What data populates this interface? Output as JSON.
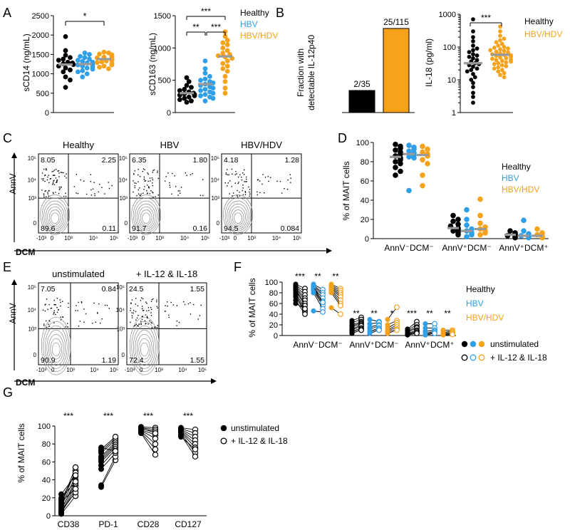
{
  "colors": {
    "healthy": "#000000",
    "hbv": "#2f9fe8",
    "hbvhdv": "#f7a21b",
    "median": "#999999"
  },
  "legend_group": [
    "Healthy",
    "HBV",
    "HBV/HDV"
  ],
  "legend_stim": [
    "unstimulated",
    "+ IL-12 & IL-18"
  ],
  "panel_labels": [
    "A",
    "B",
    "C",
    "D",
    "E",
    "F",
    "G"
  ],
  "chart_data": [
    {
      "id": "A1",
      "type": "scatter",
      "ylabel": "sCD14 (ng/mL)",
      "ylim": [
        0,
        2500
      ],
      "yticks": [
        0,
        500,
        1000,
        1500,
        2000,
        2500
      ],
      "sig": [
        "*"
      ],
      "series": [
        {
          "name": "Healthy",
          "median": 1240,
          "values": [
            1960,
            1600,
            1480,
            1420,
            1380,
            1350,
            1300,
            1280,
            1260,
            1240,
            1200,
            1150,
            1100,
            1050,
            920,
            840,
            650
          ]
        },
        {
          "name": "HBV",
          "median": 1250,
          "values": [
            1540,
            1500,
            1450,
            1420,
            1380,
            1350,
            1320,
            1300,
            1280,
            1250,
            1230,
            1200,
            1180,
            1150,
            1120,
            1080,
            1050,
            1000,
            920
          ]
        },
        {
          "name": "HBV/HDV",
          "median": 1380,
          "values": [
            1560,
            1540,
            1510,
            1490,
            1470,
            1450,
            1430,
            1410,
            1400,
            1390,
            1380,
            1370,
            1350,
            1330,
            1310,
            1290,
            1270,
            1250,
            1230,
            1200,
            1170,
            1130
          ]
        }
      ]
    },
    {
      "id": "A2",
      "type": "scatter",
      "ylabel": "sCD163 (ng/mL)",
      "ylim": [
        0,
        1500
      ],
      "yticks": [
        0,
        500,
        1000,
        1500
      ],
      "sig": [
        "**",
        "***",
        "***"
      ],
      "series": [
        {
          "name": "Healthy",
          "median": 300,
          "values": [
            540,
            480,
            420,
            390,
            360,
            340,
            320,
            300,
            290,
            280,
            270,
            260,
            240,
            220,
            200,
            180,
            160
          ]
        },
        {
          "name": "HBV",
          "median": 440,
          "values": [
            800,
            680,
            610,
            560,
            520,
            500,
            480,
            460,
            440,
            420,
            400,
            380,
            360,
            340,
            320,
            300,
            280,
            260,
            240,
            220,
            180
          ]
        },
        {
          "name": "HBV/HDV",
          "median": 870,
          "values": [
            1250,
            1180,
            1120,
            1080,
            1050,
            1000,
            960,
            920,
            900,
            880,
            860,
            840,
            800,
            760,
            720,
            680,
            640,
            560,
            480,
            380,
            300
          ]
        }
      ]
    },
    {
      "id": "B1",
      "type": "bar",
      "ylabel": "Fraction with detectable IL-12p40",
      "categories": [
        "Healthy",
        "HBV/HDV"
      ],
      "values": [
        5.7,
        21.7
      ],
      "labels": [
        "2/35",
        "25/115"
      ],
      "ylim": [
        0,
        25
      ]
    },
    {
      "id": "B2",
      "type": "scatter",
      "ylabel": "IL-18 (pg/ml)",
      "yscale": "log",
      "ylim": [
        1,
        1000
      ],
      "yticks": [
        1,
        10,
        100,
        1000
      ],
      "sig": [
        "***"
      ],
      "series": [
        {
          "name": "Healthy",
          "median": 32,
          "values": [
            700,
            300,
            200,
            150,
            110,
            90,
            80,
            70,
            60,
            55,
            50,
            45,
            40,
            36,
            32,
            30,
            28,
            25,
            22,
            20,
            18,
            15,
            12,
            10,
            8,
            6,
            4,
            3,
            2
          ]
        },
        {
          "name": "HBV/HDV",
          "median": 58,
          "values": [
            420,
            300,
            220,
            180,
            160,
            140,
            125,
            110,
            100,
            95,
            90,
            85,
            80,
            76,
            72,
            68,
            64,
            60,
            58,
            56,
            54,
            52,
            50,
            48,
            46,
            44,
            42,
            40,
            38,
            36,
            34,
            32,
            30,
            28,
            26,
            24,
            22,
            20,
            18,
            16,
            14,
            12
          ]
        }
      ]
    },
    {
      "id": "D",
      "type": "scatter",
      "ylabel": "% of MAIT cells",
      "ylim": [
        0,
        100
      ],
      "yticks": [
        0,
        20,
        40,
        60,
        80,
        100
      ],
      "categories": [
        "AnnV⁻DCM⁻",
        "AnnV⁺DCM⁻",
        "AnnV⁺DCM⁺"
      ],
      "series": [
        {
          "name": "Healthy",
          "medians": [
            85,
            11,
            4
          ],
          "values": [
            [
              98,
              96,
              94,
              92,
              90,
              88,
              86,
              84,
              82,
              80,
              78,
              74,
              70,
              66
            ],
            [
              24,
              20,
              18,
              15,
              13,
              11,
              10,
              9,
              8,
              7,
              6,
              4
            ],
            [
              8,
              6,
              5,
              4,
              3,
              2,
              1
            ]
          ]
        },
        {
          "name": "HBV",
          "medians": [
            88,
            8,
            3
          ],
          "values": [
            [
              97,
              95,
              93,
              91,
              89,
              87,
              85,
              84,
              50
            ],
            [
              30,
              20,
              14,
              10,
              8,
              6,
              4,
              2
            ],
            [
              19,
              8,
              5,
              3,
              2,
              1
            ]
          ]
        },
        {
          "name": "HBV/HDV",
          "medians": [
            87,
            10,
            3
          ],
          "values": [
            [
              96,
              93,
              90,
              88,
              86,
              82,
              78,
              66,
              55
            ],
            [
              41,
              24,
              16,
              12,
              10,
              8,
              6,
              4
            ],
            [
              10,
              6,
              4,
              3,
              2,
              1
            ]
          ]
        }
      ]
    },
    {
      "id": "F",
      "type": "line",
      "ylabel": "% of MAIT cells",
      "ylim": [
        0,
        100
      ],
      "yticks": [
        0,
        20,
        40,
        60,
        80,
        100
      ],
      "categories": [
        "AnnV⁻DCM⁻",
        "AnnV⁺DCM⁻",
        "AnnV⁺DCM⁺"
      ],
      "sig": [
        [
          "***",
          "**",
          "**"
        ],
        [
          "**",
          "**",
          "*"
        ],
        [
          "***",
          "**",
          "**"
        ]
      ],
      "series": [
        {
          "name": "Healthy",
          "pairs": [
            [
              [
                96,
                88
              ],
              [
                94,
                82
              ],
              [
                92,
                76
              ],
              [
                90,
                70
              ],
              [
                88,
                66
              ],
              [
                86,
                60
              ],
              [
                84,
                56
              ],
              [
                80,
                50
              ],
              [
                76,
                46
              ],
              [
                72,
                44
              ],
              [
                66,
                40
              ],
              [
                60,
                50
              ]
            ],
            [
              [
                28,
                34
              ],
              [
                24,
                30
              ],
              [
                20,
                26
              ],
              [
                18,
                24
              ],
              [
                16,
                22
              ],
              [
                12,
                20
              ],
              [
                10,
                18
              ],
              [
                8,
                14
              ],
              [
                6,
                12
              ],
              [
                4,
                10
              ]
            ],
            [
              [
                12,
                26
              ],
              [
                10,
                20
              ],
              [
                8,
                16
              ],
              [
                6,
                14
              ],
              [
                4,
                10
              ],
              [
                3,
                8
              ],
              [
                2,
                6
              ],
              [
                1,
                4
              ]
            ]
          ]
        },
        {
          "name": "HBV",
          "pairs": [
            [
              [
                96,
                86
              ],
              [
                94,
                80
              ],
              [
                92,
                76
              ],
              [
                90,
                70
              ],
              [
                88,
                64
              ],
              [
                86,
                60
              ],
              [
                84,
                56
              ],
              [
                80,
                50
              ],
              [
                46,
                44
              ],
              [
                92,
                62
              ]
            ],
            [
              [
                30,
                26
              ],
              [
                22,
                24
              ],
              [
                16,
                20
              ],
              [
                12,
                18
              ],
              [
                8,
                14
              ],
              [
                6,
                12
              ],
              [
                4,
                10
              ]
            ],
            [
              [
                22,
                22
              ],
              [
                14,
                14
              ],
              [
                8,
                10
              ],
              [
                4,
                8
              ],
              [
                2,
                6
              ],
              [
                1,
                4
              ]
            ]
          ]
        },
        {
          "name": "HBV/HDV",
          "pairs": [
            [
              [
                96,
                88
              ],
              [
                94,
                84
              ],
              [
                92,
                80
              ],
              [
                90,
                76
              ],
              [
                88,
                72
              ],
              [
                86,
                66
              ],
              [
                84,
                60
              ],
              [
                80,
                56
              ],
              [
                52,
                40
              ]
            ],
            [
              [
                30,
                53
              ],
              [
                20,
                28
              ],
              [
                14,
                24
              ],
              [
                10,
                20
              ],
              [
                8,
                16
              ],
              [
                6,
                12
              ],
              [
                4,
                10
              ]
            ],
            [
              [
                10,
                10
              ],
              [
                6,
                8
              ],
              [
                4,
                6
              ],
              [
                2,
                4
              ],
              [
                1,
                2
              ]
            ]
          ]
        }
      ]
    },
    {
      "id": "G",
      "type": "line",
      "ylabel": "% of MAIT cells",
      "ylim": [
        0,
        100
      ],
      "yticks": [
        0,
        20,
        40,
        60,
        80,
        100
      ],
      "categories": [
        "CD38",
        "PD-1",
        "CD28",
        "CD127"
      ],
      "sig": [
        "***",
        "***",
        "***",
        "***"
      ],
      "pairs": [
        [
          [
            2,
            22
          ],
          [
            3,
            30
          ],
          [
            4,
            34
          ],
          [
            5,
            26
          ],
          [
            6,
            40
          ],
          [
            8,
            36
          ],
          [
            10,
            44
          ],
          [
            12,
            50
          ],
          [
            14,
            54
          ],
          [
            16,
            30
          ],
          [
            18,
            48
          ],
          [
            20,
            38
          ],
          [
            24,
            45
          ]
        ],
        [
          [
            32,
            62
          ],
          [
            34,
            66
          ],
          [
            52,
            70
          ],
          [
            56,
            74
          ],
          [
            60,
            76
          ],
          [
            62,
            78
          ],
          [
            64,
            80
          ],
          [
            66,
            82
          ],
          [
            70,
            84
          ],
          [
            72,
            86
          ],
          [
            74,
            88
          ],
          [
            76,
            72
          ]
        ],
        [
          [
            99,
            98
          ],
          [
            98,
            96
          ],
          [
            97,
            94
          ],
          [
            96,
            90
          ],
          [
            95,
            86
          ],
          [
            94,
            80
          ],
          [
            93,
            74
          ],
          [
            92,
            68
          ],
          [
            98,
            92
          ]
        ],
        [
          [
            98,
            96
          ],
          [
            97,
            92
          ],
          [
            96,
            88
          ],
          [
            95,
            84
          ],
          [
            94,
            80
          ],
          [
            93,
            76
          ],
          [
            92,
            70
          ],
          [
            90,
            66
          ],
          [
            88,
            74
          ]
        ]
      ]
    }
  ],
  "facs_C": {
    "ylabel": "AnnV",
    "xlabel": "DCM",
    "xticks": [
      "-10³",
      "0",
      "10³",
      "10⁴",
      "10⁵"
    ],
    "yticks": [
      "10⁵",
      "10⁴",
      "10³",
      "0"
    ],
    "plots": [
      {
        "title": "Healthy",
        "q": [
          "8.05",
          "2.25",
          "89.6",
          "0.11"
        ]
      },
      {
        "title": "HBV",
        "q": [
          "6.35",
          "1.80",
          "91.7",
          "0.16"
        ]
      },
      {
        "title": "HBV/HDV",
        "q": [
          "4.18",
          "1.28",
          "94.5",
          "0.084"
        ]
      }
    ]
  },
  "facs_E": {
    "ylabel": "AnnV",
    "xlabel": "DCM",
    "xticks": [
      "-10³",
      "0",
      "10³",
      "10⁴",
      "10⁵"
    ],
    "yticks": [
      "10⁵",
      "10⁴",
      "10³",
      "0"
    ],
    "plots": [
      {
        "title": "unstimulated",
        "q": [
          "7.05",
          "0.84",
          "90.9",
          "1.19"
        ]
      },
      {
        "title": "+ IL-12 & IL-18",
        "q": [
          "24.5",
          "1.55",
          "72.4",
          "1.55"
        ]
      }
    ]
  }
}
